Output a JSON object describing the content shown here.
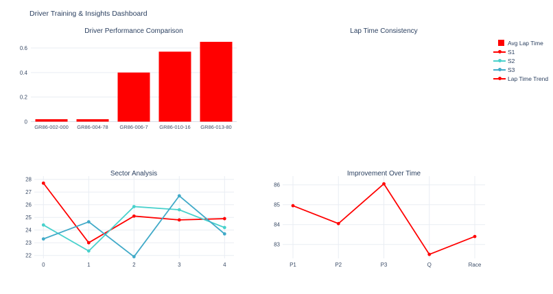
{
  "page": {
    "title": "Driver Training & Insights Dashboard"
  },
  "colors": {
    "red": "#ff0000",
    "s2_turquoise": "#48d1cc",
    "s3_cyan": "#41aac8",
    "title_text": "#2a3f5f",
    "tick_text": "#3c4d68",
    "grid": "#e9edf3",
    "zeroline": "#d8dde6",
    "background": "#ffffff"
  },
  "legend": {
    "position": "right",
    "items": [
      {
        "label": "Avg Lap Time",
        "color": "#ff0000",
        "swatch": "square"
      },
      {
        "label": "S1",
        "color": "#ff0000",
        "swatch": "line"
      },
      {
        "label": "S2",
        "color": "#48d1cc",
        "swatch": "line"
      },
      {
        "label": "S3",
        "color": "#41aac8",
        "swatch": "line"
      },
      {
        "label": "Lap Time Trend",
        "color": "#ff0000",
        "swatch": "line"
      }
    ]
  },
  "chart_data": [
    {
      "id": "performance",
      "type": "bar",
      "title": "Driver Performance Comparison",
      "categories": [
        "GR86-002-000",
        "GR86-004-78",
        "GR86-006-7",
        "GR86-010-16",
        "GR86-013-80"
      ],
      "values": [
        0.02,
        0.02,
        0.4,
        0.57,
        0.65
      ],
      "bar_color": "#ff0000",
      "legend_entry": "Avg Lap Time",
      "yticks": [
        0,
        0.2,
        0.4,
        0.6
      ],
      "ylim": [
        0,
        0.68
      ],
      "grid": true
    },
    {
      "id": "consistency",
      "type": "line",
      "title": "Lap Time Consistency",
      "series": []
    },
    {
      "id": "sector",
      "type": "line",
      "title": "Sector Analysis",
      "x": [
        0,
        1,
        2,
        3,
        4
      ],
      "xticks": [
        "0",
        "1",
        "2",
        "3",
        "4"
      ],
      "series": [
        {
          "name": "S1",
          "color": "#ff0000",
          "values": [
            27.7,
            23.0,
            25.1,
            24.8,
            24.9
          ]
        },
        {
          "name": "S2",
          "color": "#48d1cc",
          "values": [
            24.4,
            22.35,
            25.85,
            25.6,
            24.2
          ]
        },
        {
          "name": "S3",
          "color": "#41aac8",
          "values": [
            23.3,
            24.65,
            21.9,
            26.7,
            23.7
          ]
        }
      ],
      "yticks": [
        22,
        23,
        24,
        25,
        26,
        27,
        28
      ],
      "ylim": [
        21.8,
        28.25
      ],
      "grid": true,
      "legend_position": "right"
    },
    {
      "id": "improvement",
      "type": "line",
      "title": "Improvement Over Time",
      "categories": [
        "P1",
        "P2",
        "P3",
        "Q",
        "Race"
      ],
      "series": [
        {
          "name": "Lap Time Trend",
          "color": "#ff0000",
          "values": [
            84.95,
            84.05,
            86.05,
            82.5,
            83.4
          ]
        }
      ],
      "yticks": [
        83,
        84,
        85,
        86
      ],
      "ylim": [
        82.3,
        86.45
      ],
      "grid": true
    }
  ]
}
